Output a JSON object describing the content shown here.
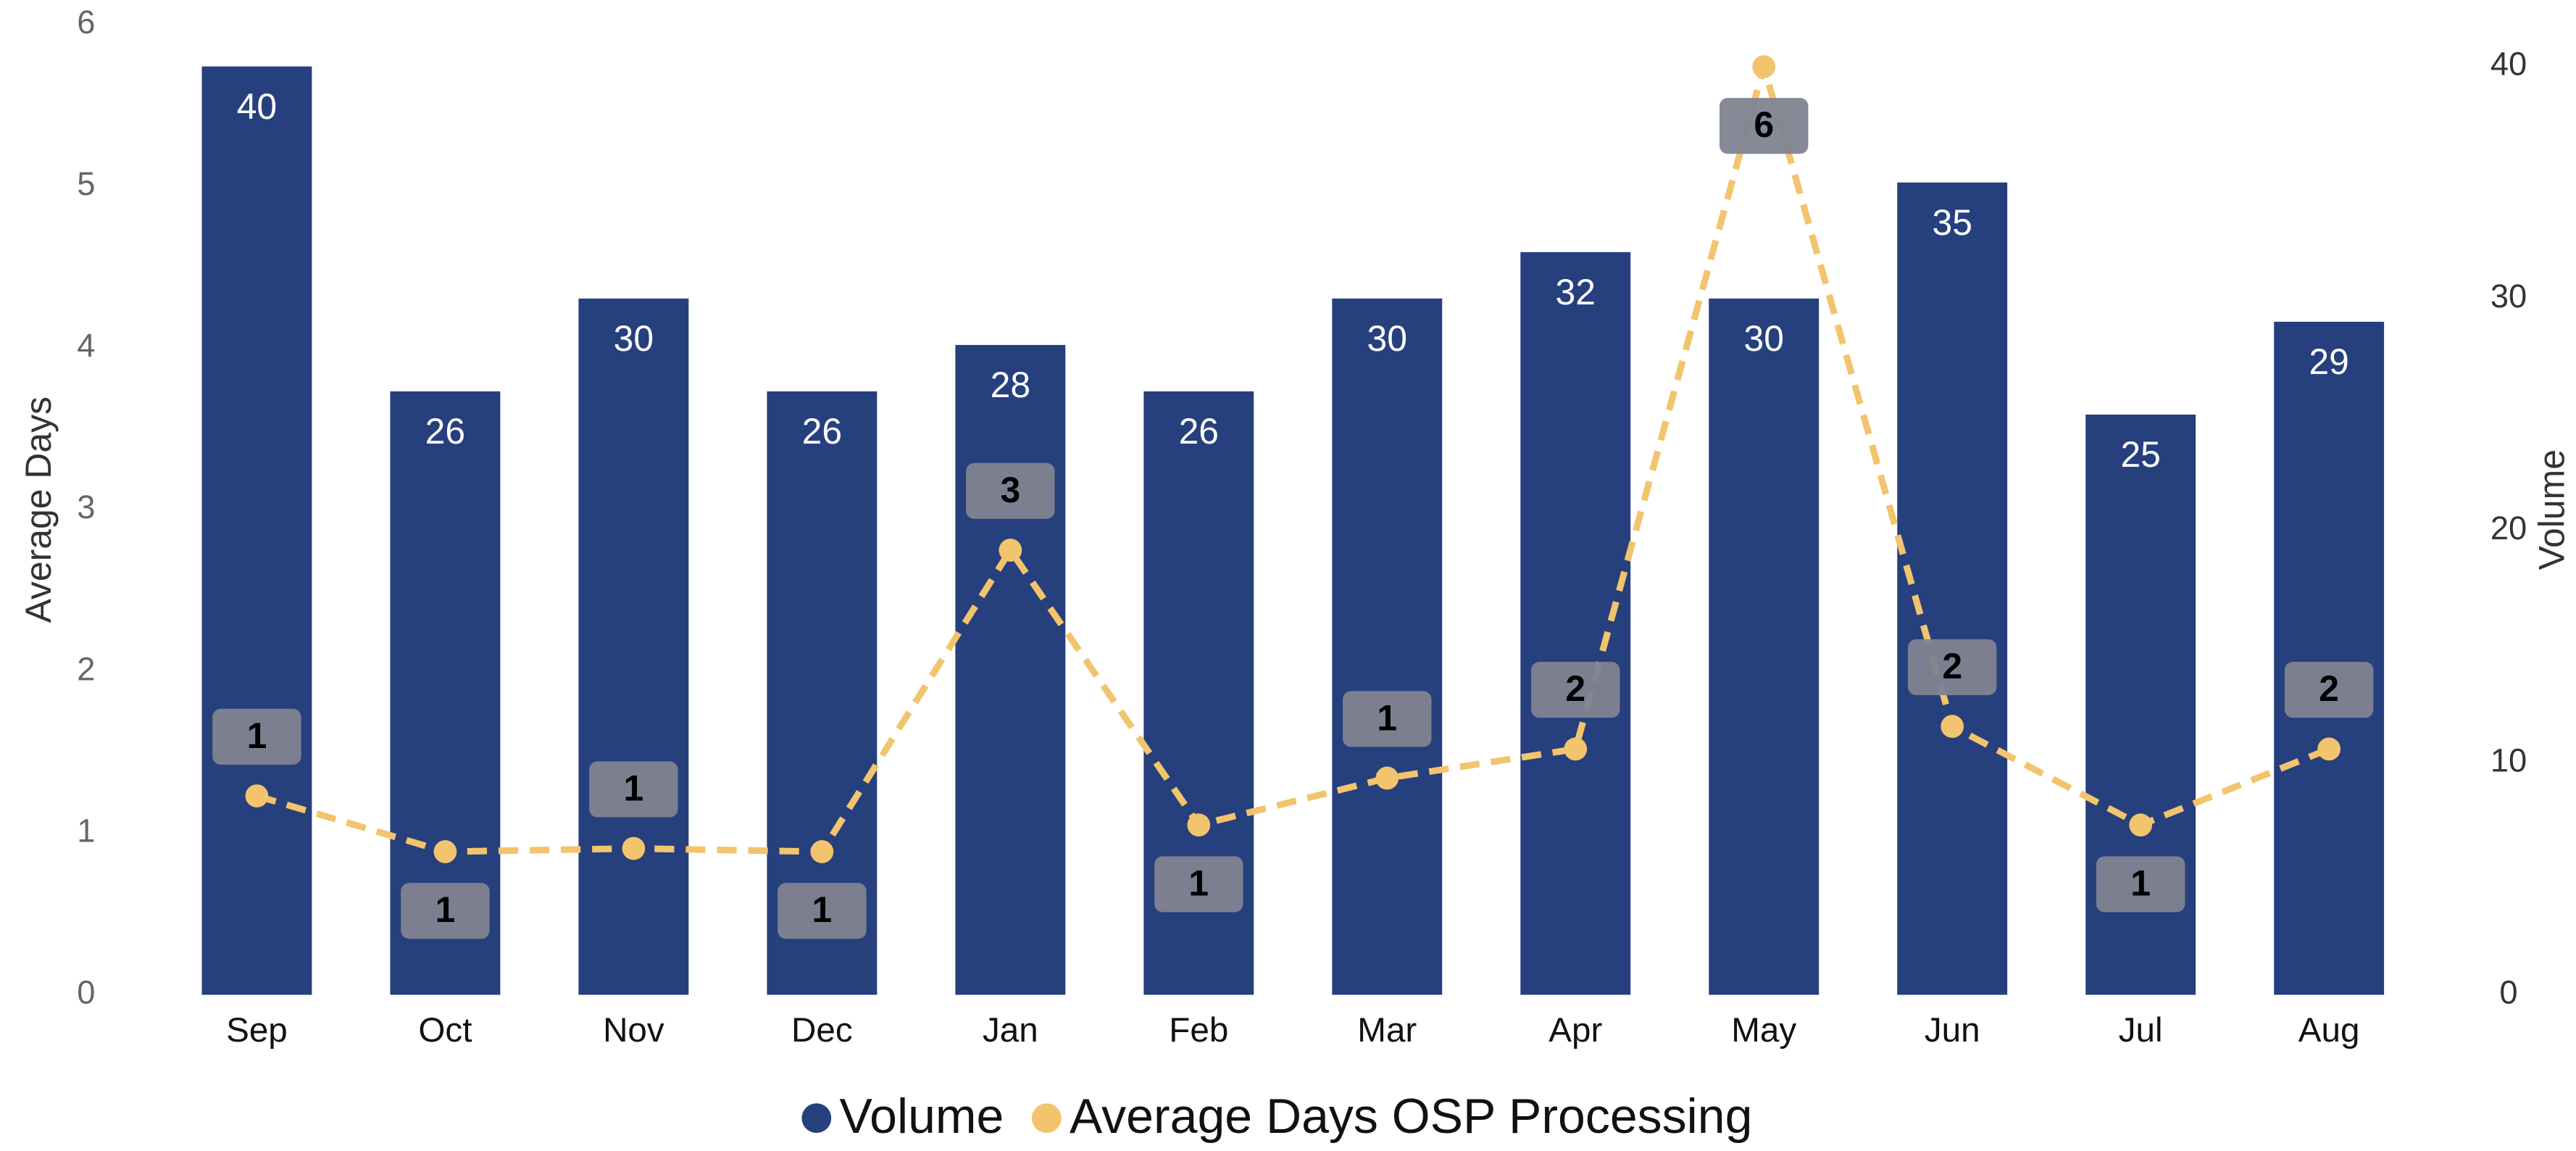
{
  "chart_data": {
    "type": "combo",
    "categories": [
      "Sep",
      "Oct",
      "Nov",
      "Dec",
      "Jan",
      "Feb",
      "Mar",
      "Apr",
      "May",
      "Jun",
      "Jul",
      "Aug"
    ],
    "series": [
      {
        "name": "Volume",
        "type": "bar",
        "axis": "y2",
        "color": "#263f7d",
        "values": [
          40,
          26,
          30,
          26,
          28,
          26,
          30,
          32,
          30,
          35,
          25,
          29
        ]
      },
      {
        "name": "Average Days OSP Processing",
        "type": "line",
        "axis": "y",
        "color": "#f2c46d",
        "values": [
          1.23,
          0.885,
          0.905,
          0.885,
          2.75,
          1.05,
          1.34,
          1.52,
          5.74,
          1.66,
          1.05,
          1.52
        ],
        "value_labels": [
          "1",
          "1",
          "1",
          "1",
          "3",
          "1",
          "1",
          "2",
          "6",
          "2",
          "1",
          "2"
        ]
      }
    ],
    "y_label": "Average Days",
    "y2_label": "Volume",
    "ylim": [
      0,
      6
    ],
    "yticks": [
      0,
      1,
      2,
      3,
      4,
      5,
      6
    ],
    "y2lim": [
      0,
      41.8
    ],
    "y2ticks": [
      0,
      10,
      20,
      30,
      40
    ],
    "legend": "bottom"
  }
}
